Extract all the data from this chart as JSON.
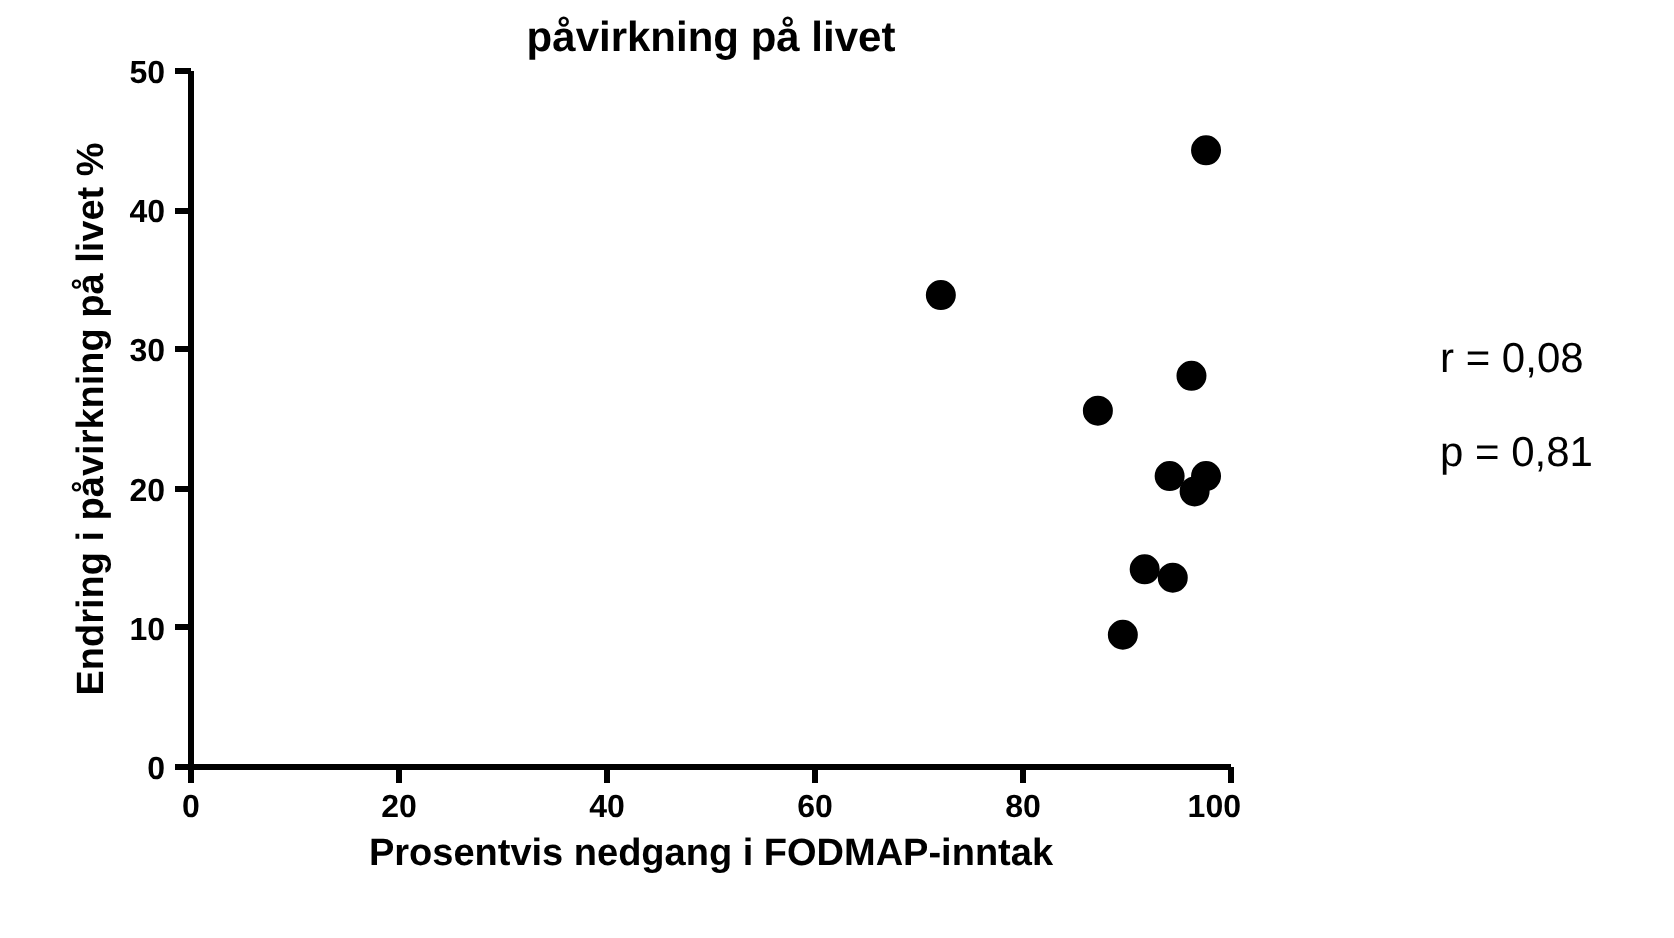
{
  "chart_data": {
    "type": "scatter",
    "title": "påvirkning på livet",
    "xlabel": "Prosentvis nedgang i FODMAP-inntak",
    "ylabel": "Endring i påvirkning på livet %",
    "x": [
      72.1,
      96.2,
      87.2,
      94.1,
      97.6,
      96.5,
      91.7,
      94.4,
      89.6,
      97.6
    ],
    "series": [
      {
        "color": "#000000",
        "values": [
          33.9,
          28.1,
          25.6,
          20.9,
          20.9,
          19.8,
          14.2,
          13.6,
          9.5,
          44.3
        ]
      }
    ],
    "xlim": [
      0,
      100
    ],
    "ylim": [
      0,
      50
    ],
    "xticks": [
      0,
      20,
      40,
      60,
      80,
      100
    ],
    "yticks": [
      0,
      10,
      20,
      30,
      40,
      50
    ],
    "marker": "circle",
    "grid": false,
    "annotations": [
      "r = 0,08",
      "p = 0,81"
    ]
  }
}
